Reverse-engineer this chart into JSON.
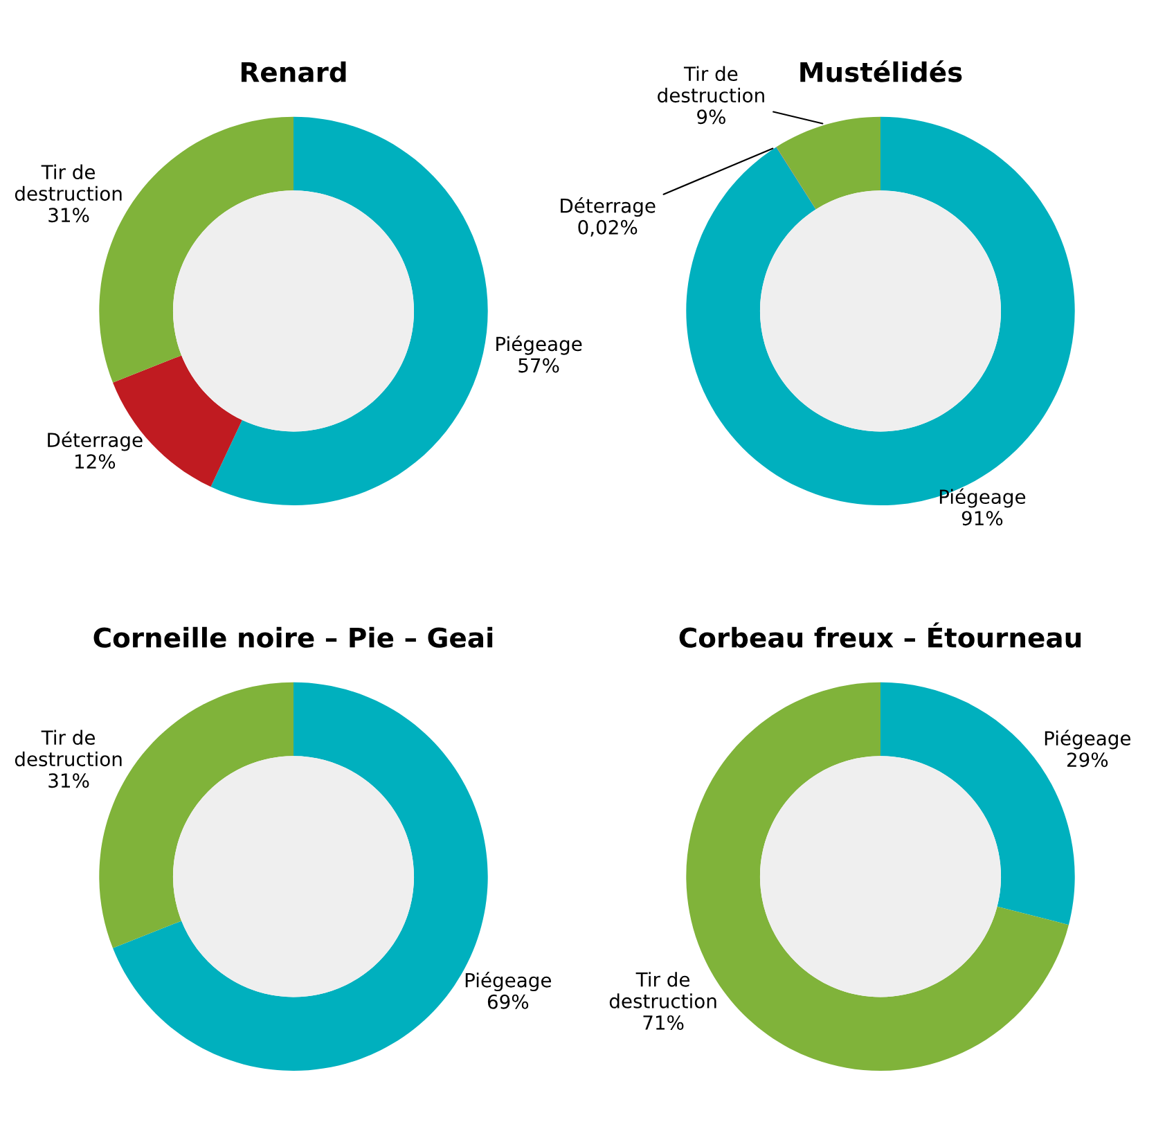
{
  "chart_data": [
    {
      "type": "donut",
      "title": "Renard",
      "categories": [
        "Piégeage",
        "Déterrage",
        "Tir de destruction"
      ],
      "values": [
        57,
        12,
        31
      ],
      "colors": [
        "#00b0be",
        "#c01b21",
        "#80b33a"
      ],
      "value_labels": [
        "57%",
        "12%",
        "31%"
      ]
    },
    {
      "type": "donut",
      "title": "Mustélidés",
      "categories": [
        "Piégeage",
        "Déterrage",
        "Tir de destruction"
      ],
      "values": [
        91,
        0.02,
        9
      ],
      "colors": [
        "#00b0be",
        "#c01b21",
        "#80b33a"
      ],
      "value_labels": [
        "91%",
        "0,02%",
        "9%"
      ]
    },
    {
      "type": "donut",
      "title": "Corneille noire – Pie – Geai",
      "categories": [
        "Piégeage",
        "Tir de destruction"
      ],
      "values": [
        69,
        31
      ],
      "colors": [
        "#00b0be",
        "#80b33a"
      ],
      "value_labels": [
        "69%",
        "31%"
      ]
    },
    {
      "type": "donut",
      "title": "Corbeau freux – Étourneau",
      "categories": [
        "Piégeage",
        "Tir de destruction"
      ],
      "values": [
        29,
        71
      ],
      "colors": [
        "#00b0be",
        "#80b33a"
      ],
      "value_labels": [
        "29%",
        "71%"
      ]
    }
  ]
}
